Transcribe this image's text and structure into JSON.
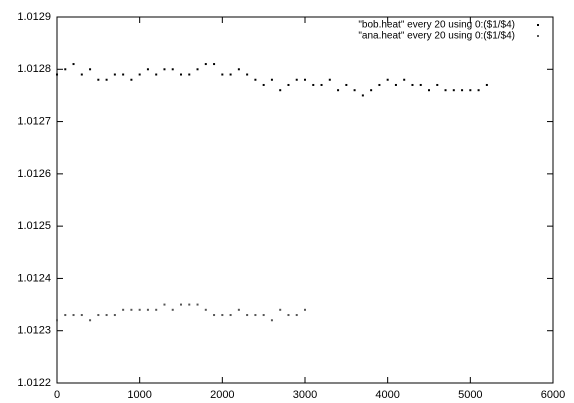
{
  "chart_data": {
    "type": "scatter",
    "xlim": [
      0,
      6000
    ],
    "xticks": [
      0,
      1000,
      2000,
      3000,
      4000,
      5000,
      6000
    ],
    "ylim": [
      1.0122,
      1.0129
    ],
    "yticks": [
      1.0122,
      1.0123,
      1.0124,
      1.0125,
      1.0126,
      1.0127,
      1.0128,
      1.0129
    ],
    "legend": "top-right",
    "series": [
      {
        "name": "\"bob.heat\" every 20 using 0:($1/$4)",
        "color": "#000000",
        "x": [
          0,
          100,
          200,
          300,
          400,
          500,
          600,
          700,
          800,
          900,
          1000,
          1100,
          1200,
          1300,
          1400,
          1500,
          1600,
          1700,
          1800,
          1900,
          2000,
          2100,
          2200,
          2300,
          2400,
          2500,
          2600,
          2700,
          2800,
          2900,
          3000,
          3100,
          3200,
          3300,
          3400,
          3500,
          3600,
          3700,
          3800,
          3900,
          4000,
          4100,
          4200,
          4300,
          4400,
          4500,
          4600,
          4700,
          4800,
          4900,
          5000,
          5100,
          5200
        ],
        "values": [
          1.01279,
          1.0128,
          1.01281,
          1.01279,
          1.0128,
          1.01278,
          1.01278,
          1.01279,
          1.01279,
          1.01278,
          1.01279,
          1.0128,
          1.01279,
          1.0128,
          1.0128,
          1.01279,
          1.01279,
          1.0128,
          1.01281,
          1.01281,
          1.01279,
          1.01279,
          1.0128,
          1.01279,
          1.01278,
          1.01277,
          1.01278,
          1.01276,
          1.01277,
          1.01278,
          1.01278,
          1.01277,
          1.01277,
          1.01278,
          1.01276,
          1.01277,
          1.01276,
          1.01275,
          1.01276,
          1.01277,
          1.01278,
          1.01277,
          1.01278,
          1.01277,
          1.01277,
          1.01276,
          1.01277,
          1.01276,
          1.01276,
          1.01276,
          1.01276,
          1.01276,
          1.01277
        ]
      },
      {
        "name": "\"ana.heat\" every 20 using 0:($1/$4)",
        "color": "#555555",
        "x": [
          0,
          100,
          200,
          300,
          400,
          500,
          600,
          700,
          800,
          900,
          1000,
          1100,
          1200,
          1300,
          1400,
          1500,
          1600,
          1700,
          1800,
          1900,
          2000,
          2100,
          2200,
          2300,
          2400,
          2500,
          2600,
          2700,
          2800,
          2900,
          3000
        ],
        "values": [
          1.01232,
          1.01233,
          1.01233,
          1.01233,
          1.01232,
          1.01233,
          1.01233,
          1.01233,
          1.01234,
          1.01234,
          1.01234,
          1.01234,
          1.01234,
          1.01235,
          1.01234,
          1.01235,
          1.01235,
          1.01235,
          1.01234,
          1.01233,
          1.01233,
          1.01233,
          1.01234,
          1.01233,
          1.01233,
          1.01233,
          1.01232,
          1.01234,
          1.01233,
          1.01233,
          1.01234
        ]
      }
    ]
  }
}
